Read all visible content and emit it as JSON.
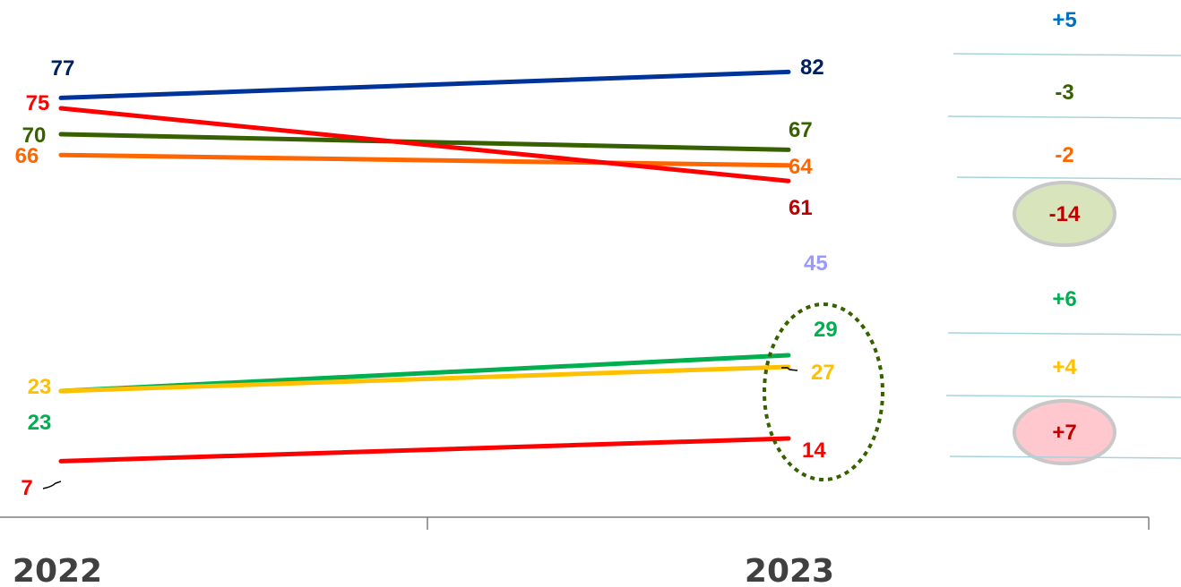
{
  "chart_data": {
    "type": "line",
    "x": [
      "2022",
      "2023"
    ],
    "series": [
      {
        "values": [
          77,
          82
        ],
        "color": "#003399",
        "label_color": "#002060",
        "delta": "+5",
        "delta_color": "#0070C0",
        "delta_highlight": null
      },
      {
        "values": [
          70,
          67
        ],
        "color": "#376100",
        "label_color": "#376100",
        "delta": "-3",
        "delta_color": "#376100",
        "delta_highlight": null
      },
      {
        "values": [
          66,
          64
        ],
        "color": "#FF6600",
        "label_color": "#FF6600",
        "delta": "-2",
        "delta_color": "#FF6600",
        "delta_highlight": null
      },
      {
        "values": [
          75,
          61
        ],
        "color": "#FF0000",
        "label_color": "#FF0000",
        "end_label_color": "#C00000",
        "delta": "-14",
        "delta_color": "#C00000",
        "delta_highlight": "#D8E4BC"
      },
      {
        "values": [
          null,
          45
        ],
        "color": "#9999FF",
        "label_color": "#9999FF",
        "delta": null
      },
      {
        "values": [
          23,
          29
        ],
        "color": "#00B050",
        "label_color": "#00B050",
        "delta": "+6",
        "delta_color": "#00B050",
        "delta_highlight": null
      },
      {
        "values": [
          23,
          27
        ],
        "color": "#FFC000",
        "label_color": "#FFC000",
        "delta": "+4",
        "delta_color": "#FFC000",
        "delta_highlight": null
      },
      {
        "values": [
          7,
          14
        ],
        "color": "#FF0000",
        "label_color": "#FF0000",
        "delta": "+7",
        "delta_color": "#C00000",
        "delta_highlight": "#FFC7CE"
      }
    ],
    "grid": false,
    "legend": "none"
  }
}
